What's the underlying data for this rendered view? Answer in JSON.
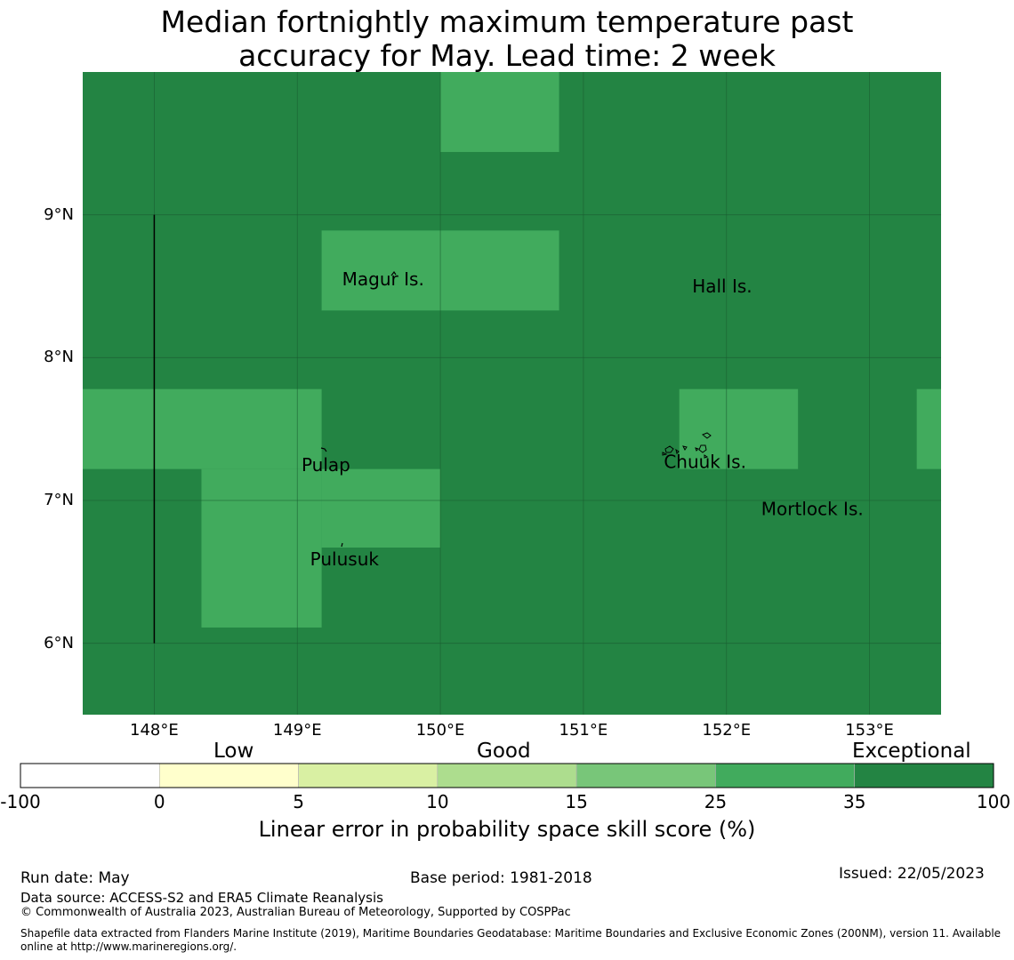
{
  "title": {
    "line1": "Median fortnightly maximum temperature past",
    "line2": "accuracy for May. Lead time: 2 week"
  },
  "map": {
    "lon_range": [
      147.5,
      153.5
    ],
    "lat_range": [
      5.5,
      10.0
    ],
    "lat_ticks": [
      {
        "value": 9,
        "label": "9°N"
      },
      {
        "value": 8,
        "label": "8°N"
      },
      {
        "value": 7,
        "label": "7°N"
      },
      {
        "value": 6,
        "label": "6°N"
      }
    ],
    "lon_ticks": [
      {
        "value": 148,
        "label": "148°E"
      },
      {
        "value": 149,
        "label": "149°E"
      },
      {
        "value": 150,
        "label": "150°E"
      },
      {
        "value": 151,
        "label": "151°E"
      },
      {
        "value": 152,
        "label": "152°E"
      },
      {
        "value": 153,
        "label": "153°E"
      }
    ],
    "background_class": "35 to 100",
    "skill_cells_25_to_35": [
      {
        "lon": [
          150.0,
          150.83
        ],
        "lat": [
          9.44,
          10.0
        ]
      },
      {
        "lon": [
          149.17,
          150.83
        ],
        "lat": [
          8.33,
          8.89
        ]
      },
      {
        "lon": [
          147.5,
          149.17
        ],
        "lat": [
          7.22,
          7.78
        ]
      },
      {
        "lon": [
          148.33,
          149.17
        ],
        "lat": [
          6.11,
          7.22
        ]
      },
      {
        "lon": [
          149.17,
          150.0
        ],
        "lat": [
          6.67,
          7.22
        ]
      },
      {
        "lon": [
          151.67,
          152.5
        ],
        "lat": [
          7.22,
          7.78
        ]
      },
      {
        "lon": [
          153.33,
          153.5
        ],
        "lat": [
          7.22,
          7.78
        ]
      }
    ],
    "boundary_line": {
      "lon": 148.0,
      "lat": [
        6.0,
        9.0
      ]
    },
    "places": [
      {
        "name": "Magur Is.",
        "lon": 149.6,
        "lat": 8.55
      },
      {
        "name": "Hall Is.",
        "lon": 151.97,
        "lat": 8.5
      },
      {
        "name": "Pulap",
        "lon": 149.2,
        "lat": 7.25
      },
      {
        "name": "Chuuk Is.",
        "lon": 151.85,
        "lat": 7.27
      },
      {
        "name": "Mortlock Is.",
        "lon": 152.6,
        "lat": 6.94
      },
      {
        "name": "Pulusuk",
        "lon": 149.33,
        "lat": 6.59
      }
    ]
  },
  "colorbar": {
    "title": "Linear error in probability space skill score (%)",
    "categories": [
      "Low",
      "Good",
      "Exceptional"
    ],
    "ticks": [
      "-100",
      "0",
      "5",
      "10",
      "15",
      "25",
      "35",
      "100"
    ],
    "colors": [
      "#ffffff",
      "#ffffcc",
      "#d9f0a3",
      "#addd8e",
      "#78c679",
      "#41ab5d",
      "#238443"
    ]
  },
  "colors": {
    "high_skill": "#238443",
    "medium_skill": "#41ab5d",
    "gridline": "#1a5c30"
  },
  "footer": {
    "run_date": "Run date: May",
    "base_period": "Base period: 1981-2018",
    "issued": "Issued: 22/05/2023",
    "data_source": "Data source: ACCESS-S2 and ERA5 Climate Reanalysis",
    "copyright": "© Commonwealth of Australia 2023, Australian Bureau of Meteorology, Supported by COSPPac",
    "shapefile_line1": "Shapefile data extracted from Flanders Marine Institute (2019), Maritime Boundaries Geodatabase: Maritime Boundaries and Exclusive Economic Zones (200NM), version 11. Available",
    "shapefile_line2": "online at http://www.marineregions.org/."
  }
}
